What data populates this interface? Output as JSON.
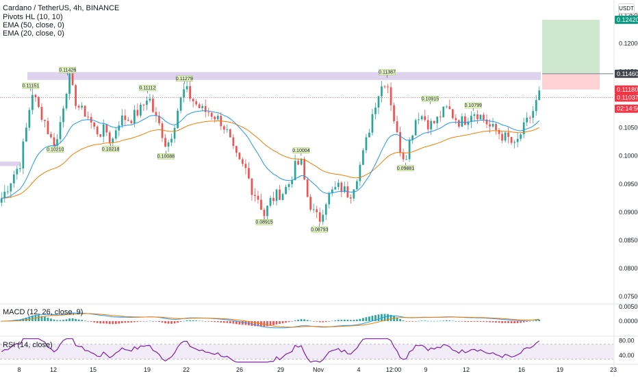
{
  "header": {
    "title": "Cardano / TetherUS, 4h, BINANCE",
    "indicators": [
      "Pivots HL (10, 10)",
      "EMA (50, close, 0)",
      "EMA (20, close, 0)"
    ],
    "currency": "USDT"
  },
  "panes": {
    "macd_label": "MACD (12, 26, close, 9)",
    "rsi_label": "RSI (14, close)"
  },
  "colors": {
    "up": "#26a69a",
    "down": "#ef5350",
    "ema20": "#2196f3",
    "ema50": "#f57c00",
    "rsi": "#7b1fa2",
    "zone": "#d1c4e9",
    "target": "#c8e6c9",
    "stop": "#ffcdd2"
  },
  "chart_data": [
    {
      "type": "candlestick",
      "title": "Cardano / TetherUS, 4h, BINANCE",
      "x_ticks": [
        "8",
        "12",
        "15",
        "19",
        "22",
        "26",
        "29",
        "Nov",
        "4",
        "12:00",
        "9",
        "12",
        "16",
        "19",
        "23"
      ],
      "y_ticks": [
        "0.12500",
        "0.12000",
        "0.11500",
        "0.11000",
        "0.10500",
        "0.10000",
        "0.09500",
        "0.09000",
        "0.08500",
        "0.08000",
        "0.07500"
      ],
      "ylim": [
        0.0738,
        0.1265
      ],
      "close_path": [
        0.0925,
        0.0945,
        0.0968,
        0.0985,
        0.1045,
        0.1115,
        0.1085,
        0.1065,
        0.103,
        0.1022,
        0.1085,
        0.1142,
        0.11,
        0.108,
        0.1075,
        0.105,
        0.104,
        0.1048,
        0.1022,
        0.106,
        0.1068,
        0.1065,
        0.1075,
        0.1085,
        0.111,
        0.1072,
        0.105,
        0.1016,
        0.1045,
        0.109,
        0.112,
        0.1103,
        0.109,
        0.108,
        0.1078,
        0.107,
        0.106,
        0.104,
        0.1005,
        0.0985,
        0.0975,
        0.094,
        0.0925,
        0.0895,
        0.092,
        0.093,
        0.0935,
        0.095,
        0.098,
        0.099,
        0.093,
        0.09,
        0.0885,
        0.092,
        0.0935,
        0.0945,
        0.094,
        0.093,
        0.096,
        0.0995,
        0.104,
        0.109,
        0.112,
        0.1138,
        0.108,
        0.102,
        0.0995,
        0.1035,
        0.1075,
        0.107,
        0.1055,
        0.106,
        0.1075,
        0.1085,
        0.107,
        0.106,
        0.1065,
        0.108,
        0.1075,
        0.1065,
        0.105,
        0.1045,
        0.1035,
        0.103,
        0.1015,
        0.104,
        0.106,
        0.108,
        0.111
      ],
      "pivots": [
        {
          "label": "0.11151",
          "x_index": 5,
          "value": 0.1115,
          "type": "high"
        },
        {
          "label": "0.11426",
          "x_index": 11,
          "value": 0.1143,
          "type": "high"
        },
        {
          "label": "0.10210",
          "x_index": 9,
          "value": 0.1021,
          "type": "low"
        },
        {
          "label": "0.10218",
          "x_index": 18,
          "value": 0.1022,
          "type": "low"
        },
        {
          "label": "0.11112",
          "x_index": 24,
          "value": 0.1111,
          "type": "high"
        },
        {
          "label": "0.10088",
          "x_index": 27,
          "value": 0.1009,
          "type": "low"
        },
        {
          "label": "0.11279",
          "x_index": 30,
          "value": 0.1128,
          "type": "high"
        },
        {
          "label": "0.08915",
          "x_index": 43,
          "value": 0.0892,
          "type": "low"
        },
        {
          "label": "0.10004",
          "x_index": 49,
          "value": 0.1,
          "type": "high"
        },
        {
          "label": "0.08793",
          "x_index": 52,
          "value": 0.0879,
          "type": "low"
        },
        {
          "label": "0.11387",
          "x_index": 63,
          "value": 0.1139,
          "type": "high"
        },
        {
          "label": "0.09881",
          "x_index": 66,
          "value": 0.0988,
          "type": "low"
        },
        {
          "label": "0.10915",
          "x_index": 70,
          "value": 0.1092,
          "type": "high"
        },
        {
          "label": "0.10799",
          "x_index": 77,
          "value": 0.108,
          "type": "high"
        }
      ],
      "price_tags": [
        {
          "label": "0.12420",
          "value": 0.1242,
          "color": "#089981"
        },
        {
          "label": "0.11460",
          "value": 0.1146,
          "color": "#434651"
        },
        {
          "label": "0.11180",
          "value": 0.1118,
          "color": "#f23645"
        },
        {
          "label": "0.11037",
          "value": 0.11037,
          "color": "#f23645"
        },
        {
          "label": "02:14:50",
          "value": 0.1084,
          "color": "#f23645"
        }
      ],
      "resistance_zone": [
        0.1135,
        0.1149
      ],
      "left_zone": [
        0.0982,
        0.099
      ],
      "position": {
        "entry": 0.1146,
        "target": 0.1242,
        "stop": 0.1118
      },
      "current_price": 0.11037
    },
    {
      "type": "bar",
      "title": "MACD (12, 26, close, 9)",
      "y_ticks": [
        "0.00500",
        "0.00000"
      ],
      "ylim": [
        -0.005,
        0.0055
      ]
    },
    {
      "type": "line",
      "title": "RSI (14, close)",
      "y_ticks": [
        "80.00",
        "40.00"
      ],
      "ylim": [
        20,
        90
      ],
      "band": [
        30,
        70
      ]
    }
  ]
}
